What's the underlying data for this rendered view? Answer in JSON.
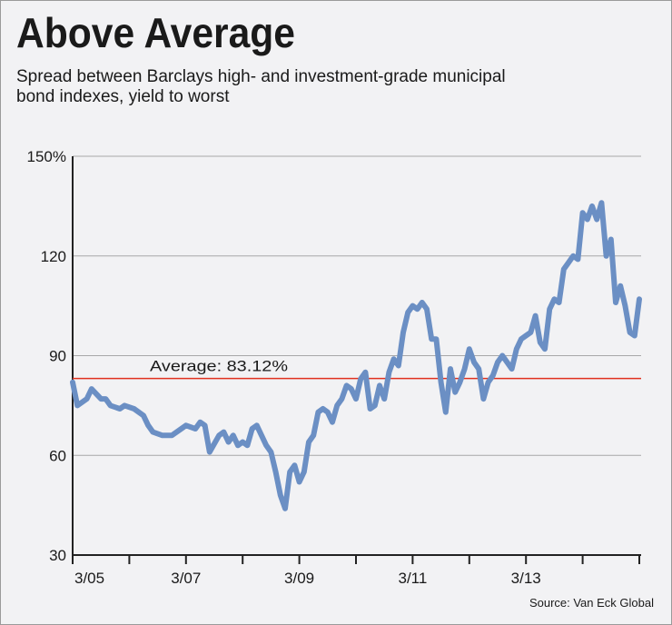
{
  "chart_data": {
    "type": "line",
    "title": "Above Average",
    "subtitle": [
      "Spread between Barclays high- and investment-grade municipal",
      "bond indexes, yield to worst"
    ],
    "source": "Source: Van Eck Global",
    "average": {
      "value": 83.12,
      "label": "Average: 83.12%",
      "color": "#e0301e"
    },
    "ylim": [
      30,
      150
    ],
    "yticks": [
      {
        "value": 30,
        "label": "30"
      },
      {
        "value": 60,
        "label": "60"
      },
      {
        "value": 90,
        "label": "90"
      },
      {
        "value": 120,
        "label": "120"
      },
      {
        "value": 150,
        "label": "150%"
      }
    ],
    "xlim": [
      "2005-03",
      "2015-03"
    ],
    "xticks": [
      {
        "value": "2005-03",
        "label": "3/05"
      },
      {
        "value": "2007-03",
        "label": "3/07"
      },
      {
        "value": "2009-03",
        "label": "3/09"
      },
      {
        "value": "2011-03",
        "label": "3/11"
      },
      {
        "value": "2013-03",
        "label": "3/13"
      }
    ],
    "xminor_ticks": [
      "2006-03",
      "2008-03",
      "2010-03",
      "2012-03",
      "2014-03",
      "2015-03"
    ],
    "grid": true,
    "x": [
      "2005-03",
      "2005-04",
      "2005-06",
      "2005-07",
      "2005-09",
      "2005-10",
      "2005-11",
      "2006-01",
      "2006-02",
      "2006-04",
      "2006-06",
      "2006-07",
      "2006-08",
      "2006-10",
      "2006-12",
      "2007-02",
      "2007-03",
      "2007-05",
      "2007-06",
      "2007-07",
      "2007-08",
      "2007-10",
      "2007-11",
      "2007-12",
      "2008-01",
      "2008-02",
      "2008-03",
      "2008-04",
      "2008-05",
      "2008-06",
      "2008-07",
      "2008-08",
      "2008-09",
      "2008-10",
      "2008-11",
      "2008-12",
      "2009-01",
      "2009-02",
      "2009-03",
      "2009-04",
      "2009-05",
      "2009-06",
      "2009-07",
      "2009-08",
      "2009-09",
      "2009-10",
      "2009-11",
      "2009-12",
      "2010-01",
      "2010-02",
      "2010-03",
      "2010-04",
      "2010-05",
      "2010-06",
      "2010-07",
      "2010-08",
      "2010-09",
      "2010-10",
      "2010-11",
      "2010-12",
      "2011-01",
      "2011-02",
      "2011-03",
      "2011-04",
      "2011-05",
      "2011-06",
      "2011-07",
      "2011-08",
      "2011-09",
      "2011-10",
      "2011-11",
      "2011-12",
      "2012-01",
      "2012-02",
      "2012-03",
      "2012-04",
      "2012-05",
      "2012-06",
      "2012-07",
      "2012-08",
      "2012-09",
      "2012-10",
      "2012-11",
      "2012-12",
      "2013-01",
      "2013-02",
      "2013-03",
      "2013-04",
      "2013-05",
      "2013-06",
      "2013-07",
      "2013-08",
      "2013-09",
      "2013-10",
      "2013-11",
      "2013-12",
      "2014-01",
      "2014-02",
      "2014-03",
      "2014-04",
      "2014-05",
      "2014-06",
      "2014-07",
      "2014-08",
      "2014-09",
      "2014-10",
      "2014-11",
      "2014-12",
      "2015-01",
      "2015-02",
      "2015-03"
    ],
    "series": [
      {
        "name": "Spread",
        "color": "#6b8fc4",
        "values": [
          82,
          75,
          77,
          80,
          77,
          77,
          75,
          74,
          75,
          74,
          72,
          69,
          67,
          66,
          66,
          68,
          69,
          68,
          70,
          69,
          61,
          66,
          67,
          64,
          66,
          63,
          64,
          63,
          68,
          69,
          66,
          63,
          61,
          55,
          48,
          44,
          55,
          57,
          52,
          55,
          64,
          66,
          73,
          74,
          73,
          70,
          75,
          77,
          81,
          80,
          77,
          83,
          85,
          74,
          75,
          81,
          77,
          85,
          89,
          87,
          97,
          103,
          105,
          104,
          106,
          104,
          95,
          95,
          82,
          73,
          86,
          79,
          82,
          86,
          92,
          88,
          86,
          77,
          82,
          84,
          88,
          90,
          88,
          86,
          92,
          95,
          96,
          97,
          102,
          94,
          92,
          104,
          107,
          106,
          116,
          118,
          120,
          119,
          133,
          131,
          135,
          131,
          136,
          120,
          125,
          106,
          111,
          105,
          97,
          96,
          107
        ]
      }
    ]
  }
}
